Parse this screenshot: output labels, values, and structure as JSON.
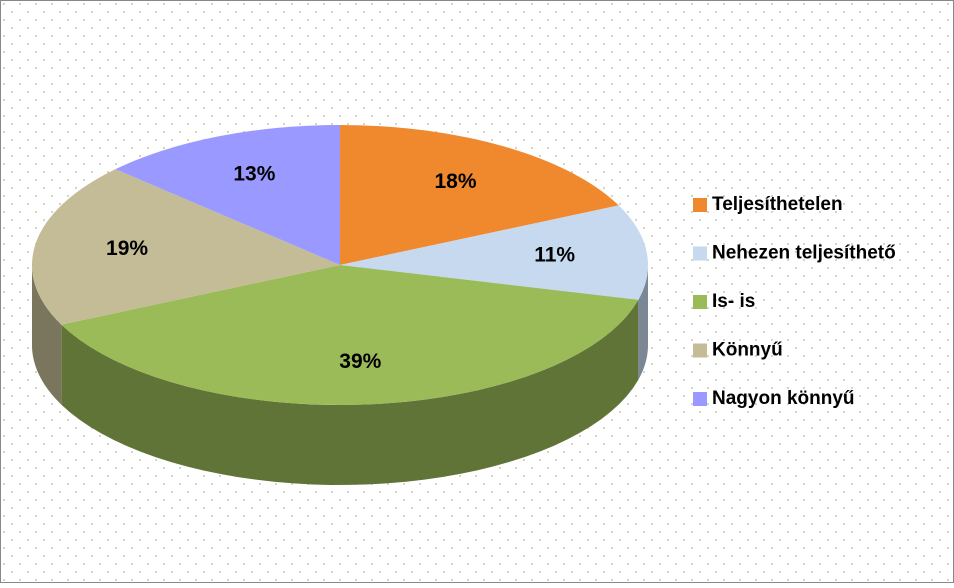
{
  "chart_data": {
    "type": "pie3d",
    "categories": [
      "Teljesíthetelen",
      "Nehezen teljesíthető",
      "Is- is",
      "Könnyű",
      "Nagyon könnyű"
    ],
    "values": [
      18,
      11,
      39,
      19,
      13
    ],
    "value_labels": [
      "18%",
      "11%",
      "39%",
      "19%",
      "13%"
    ],
    "colors": [
      "#f0882e",
      "#c6d9ef",
      "#9bbb59",
      "#c4bc96",
      "#9999ff"
    ],
    "legend": "right"
  }
}
